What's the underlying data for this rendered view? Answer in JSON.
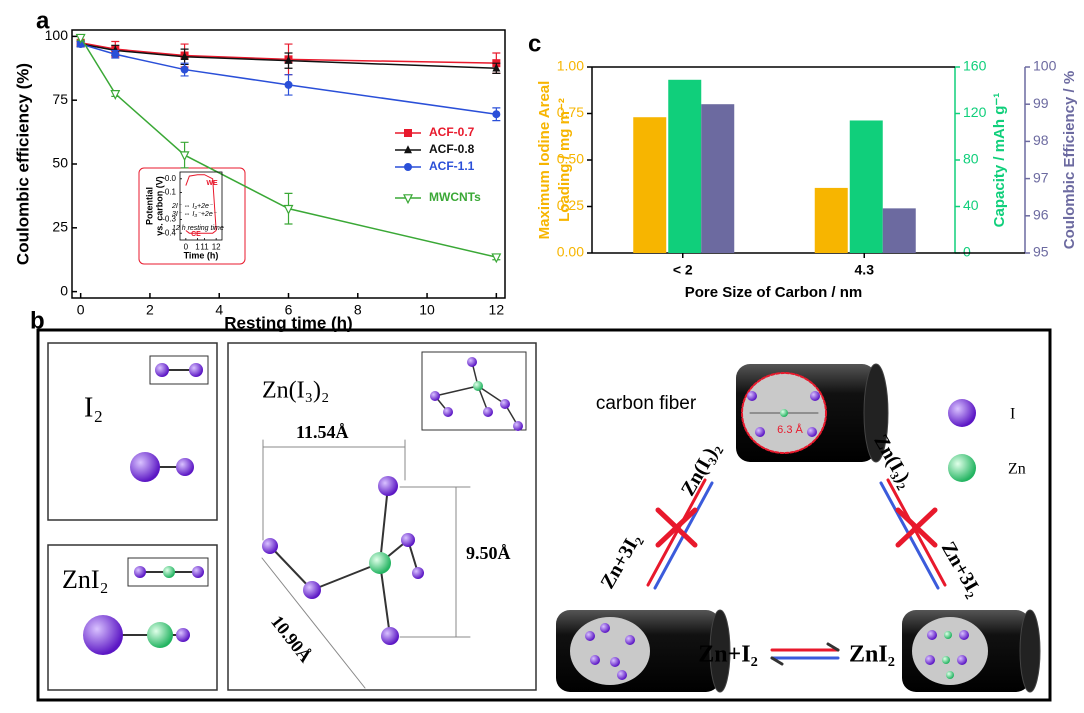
{
  "panel_labels": [
    "a",
    "b",
    "c"
  ],
  "chart_data": [
    {
      "type": "line",
      "xlabel": "Resting time (h)",
      "ylabel": "Coulombic efficiency (%)",
      "x": [
        0,
        1,
        3,
        6,
        12
      ],
      "xlim": [
        -0.25,
        12.25
      ],
      "xticks": [
        0,
        2,
        4,
        6,
        8,
        10,
        12
      ],
      "ylim": [
        -2.5,
        102.5
      ],
      "yticks": [
        0,
        25,
        50,
        75,
        100
      ],
      "series": [
        {
          "name": "ACF-0.7",
          "color": "#e8192c",
          "marker": "square",
          "values": [
            97.5,
            95,
            92.5,
            91,
            89.5
          ],
          "errors": [
            1,
            3,
            4.5,
            6,
            4
          ]
        },
        {
          "name": "ACF-0.8",
          "color": "#111111",
          "marker": "triangle",
          "values": [
            97,
            94.5,
            92,
            90.5,
            87.5
          ],
          "errors": [
            1,
            2,
            3,
            3,
            2
          ]
        },
        {
          "name": "ACF-1.1",
          "color": "#2a4fd8",
          "marker": "circle",
          "values": [
            97,
            93,
            87,
            81,
            69.5
          ],
          "errors": [
            1,
            1.5,
            2.5,
            4,
            2.5
          ]
        },
        {
          "name": "MWCNTs",
          "color": "#3aa836",
          "marker": "triangle-down-open",
          "values": [
            99.5,
            77.5,
            53.5,
            32.5,
            13.5
          ],
          "errors": [
            1,
            1,
            5,
            6,
            1
          ]
        }
      ]
    },
    {
      "type": "line",
      "xlabel": "Time (h)",
      "ylabel": [
        "Potential",
        "vs. carbon (V)"
      ],
      "x": [
        0,
        0.3,
        1,
        11,
        11.7,
        12
      ],
      "xlim": [
        -0.5,
        12.5
      ],
      "xticks": [
        0,
        1,
        11,
        12
      ],
      "xbreak": [
        1,
        11
      ],
      "ylim": [
        -0.45,
        0.05
      ],
      "yticks": [
        {
          "value": 0,
          "label": "0.0"
        },
        -0.1,
        -0.3,
        -0.4
      ],
      "series": [
        {
          "name": "WE",
          "color": "#e8192c",
          "values": [
            -0.05,
            0.02,
            0.03,
            0.03,
            0.0,
            -0.38
          ]
        },
        {
          "name": "CE",
          "color": "#e8192c",
          "values": [
            -0.38,
            -0.4,
            -0.4,
            -0.4,
            -0.4,
            -0.38
          ]
        }
      ],
      "annotations": [
        "2I⁻ ⇔ I₂+2e⁻",
        "3I⁻ ⇔ I₃⁻+2e⁻",
        "12 h resting time"
      ]
    },
    {
      "type": "bar",
      "xlabel": "Pore Size of Carbon / nm",
      "categories": [
        "< 2",
        "4.3"
      ],
      "ylabel": [
        "Maximum Iodine Areal",
        "Loading / mg m⁻²"
      ],
      "y2label": "Capacity / mAh g⁻¹",
      "y3label": "Coulombic Efficiency / %",
      "ylim": [
        0,
        1
      ],
      "yticks": [
        {
          "value": 0,
          "label": "0.00"
        },
        {
          "value": 0.25,
          "label": "0.25"
        },
        {
          "value": 0.5,
          "label": "0.50"
        },
        {
          "value": 0.75,
          "label": "0.75"
        },
        {
          "value": 1,
          "label": "1.00"
        }
      ],
      "y2lim": [
        0,
        160
      ],
      "y2ticks": [
        0,
        40,
        80,
        120,
        160
      ],
      "y3lim": [
        95,
        100
      ],
      "y3ticks": [
        95,
        96,
        97,
        98,
        99,
        100
      ],
      "series": [
        {
          "axis": "y",
          "color": "#f7b500",
          "values": [
            0.73,
            0.35
          ]
        },
        {
          "axis": "y2",
          "color": "#10cf7b",
          "values": [
            149,
            114
          ]
        },
        {
          "axis": "y3",
          "color": "#6c6aa0",
          "values": [
            99.0,
            96.2
          ]
        }
      ]
    }
  ],
  "diagram": {
    "i2_title": "I₂",
    "zni2_title": "ZnI₂",
    "zni32_title": "Zn(I₃)₂",
    "dim_width": "11.54Å",
    "dim_height": "9.50Å",
    "dim_diag": "10.90Å",
    "carbon_fiber": "carbon fiber",
    "pore": "6.3 Å",
    "legend_i": "I",
    "legend_zn": "Zn",
    "left_lower": "Zn+3I₂",
    "left_upper": "Zn(I₃)₂",
    "right_upper": "Zn(I₃)₂",
    "right_lower": "Zn+3I₂",
    "bottom_left": "Zn+I₂",
    "bottom_right": "ZnI₂"
  }
}
